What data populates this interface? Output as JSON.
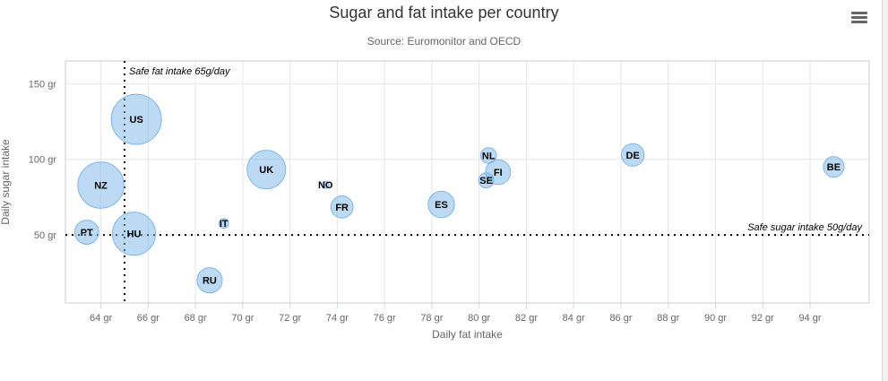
{
  "menu": {
    "icon": "hamburger-menu-icon"
  },
  "chart_data": {
    "type": "scatter",
    "title": "Sugar and fat intake per country",
    "subtitle": "Source: Euromonitor and OECD",
    "xlabel": "Daily fat intake",
    "ylabel": "Daily sugar intake",
    "xlim": [
      62.5,
      96.5
    ],
    "ylim": [
      5,
      165
    ],
    "xticks": [
      64,
      66,
      68,
      70,
      72,
      74,
      76,
      78,
      80,
      82,
      84,
      86,
      88,
      90,
      92,
      94
    ],
    "yticks": [
      50,
      100,
      150
    ],
    "tick_suffix": " gr",
    "grid": true,
    "bubble_color": "#7cb5ec",
    "points": [
      {
        "label": "BE",
        "x": 95,
        "y": 95,
        "z": 13.8
      },
      {
        "label": "DE",
        "x": 86.5,
        "y": 102.9,
        "z": 14.7
      },
      {
        "label": "FI",
        "x": 80.8,
        "y": 91.5,
        "z": 15.8
      },
      {
        "label": "NL",
        "x": 80.4,
        "y": 102.5,
        "z": 12
      },
      {
        "label": "SE",
        "x": 80.3,
        "y": 86.1,
        "z": 11.8
      },
      {
        "label": "ES",
        "x": 78.4,
        "y": 70.1,
        "z": 16.6
      },
      {
        "label": "FR",
        "x": 74.2,
        "y": 68.5,
        "z": 14.5
      },
      {
        "label": "NO",
        "x": 73.5,
        "y": 83.1,
        "z": 10
      },
      {
        "label": "UK",
        "x": 71,
        "y": 93.2,
        "z": 24.7
      },
      {
        "label": "IT",
        "x": 69.2,
        "y": 57.6,
        "z": 10.4
      },
      {
        "label": "RU",
        "x": 68.6,
        "y": 20,
        "z": 16
      },
      {
        "label": "US",
        "x": 65.5,
        "y": 126.4,
        "z": 35.3
      },
      {
        "label": "HU",
        "x": 65.4,
        "y": 50.8,
        "z": 28.5
      },
      {
        "label": "PT",
        "x": 63.4,
        "y": 51.8,
        "z": 15.4
      },
      {
        "label": "NZ",
        "x": 64,
        "y": 82.9,
        "z": 31.3
      }
    ],
    "plot_lines": [
      {
        "axis": "x",
        "value": 65,
        "label": "Safe fat intake 65g/day"
      },
      {
        "axis": "y",
        "value": 50,
        "label": "Safe sugar intake 50g/day"
      }
    ]
  }
}
